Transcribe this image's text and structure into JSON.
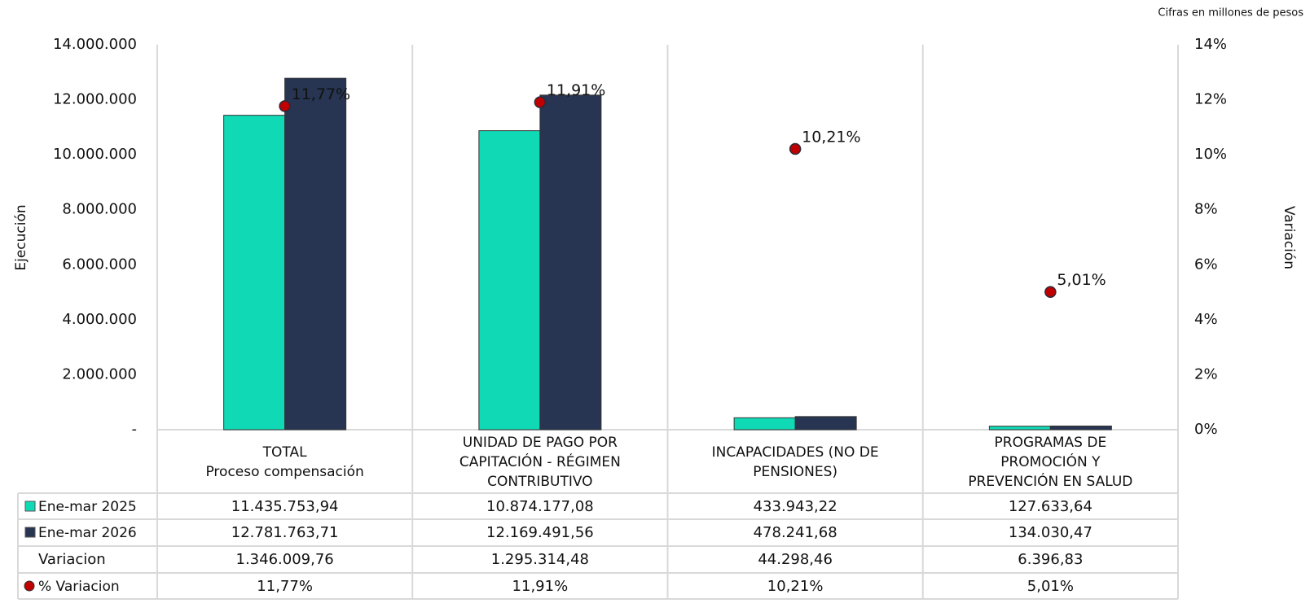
{
  "chart_data": {
    "type": "bar",
    "note": "Cifras en millones de pesos",
    "ylabel": "Ejecución",
    "y2label": "Variación",
    "categories": [
      [
        "TOTAL",
        "Proceso compensación"
      ],
      [
        "UNIDAD DE PAGO POR",
        "CAPITACIÓN - RÉGIMEN",
        "CONTRIBUTIVO"
      ],
      [
        "INCAPACIDADES (NO DE",
        "PENSIONES)"
      ],
      [
        "PROGRAMAS DE",
        "PROMOCIÓN Y",
        "PREVENCIÓN EN SALUD"
      ]
    ],
    "series": [
      {
        "name": "Ene-mar 2025",
        "color": "#10d9b6",
        "values": [
          11435753.94,
          10874177.08,
          433943.22,
          127633.64
        ],
        "value_labels": [
          "11.435.753,94",
          "10.874.177,08",
          "433.943,22",
          "127.633,64"
        ]
      },
      {
        "name": "Ene-mar 2026",
        "color": "#273552",
        "values": [
          12781763.71,
          12169491.56,
          478241.68,
          134030.47
        ],
        "value_labels": [
          "12.781.763,71",
          "12.169.491,56",
          "478.241,68",
          "134.030,47"
        ]
      },
      {
        "name": "% Variacion",
        "type": "scatter",
        "axis": "y2",
        "color": "#c00000",
        "values": [
          11.77,
          11.91,
          10.21,
          5.01
        ],
        "value_labels": [
          "11,77%",
          "11,91%",
          "10,21%",
          "5,01%"
        ]
      }
    ],
    "variacion": {
      "name": "Variacion",
      "values": [
        1346009.76,
        1295314.48,
        44298.46,
        6396.83
      ],
      "value_labels": [
        "1.346.009,76",
        "1.295.314,48",
        "44.298,46",
        "6.396,83"
      ]
    },
    "ylim": [
      0,
      14000000
    ],
    "yticks": [
      {
        "value": 0,
        "label": "-"
      },
      {
        "value": 2000000,
        "label": "2.000.000"
      },
      {
        "value": 4000000,
        "label": "4.000.000"
      },
      {
        "value": 6000000,
        "label": "6.000.000"
      },
      {
        "value": 8000000,
        "label": "8.000.000"
      },
      {
        "value": 10000000,
        "label": "10.000.000"
      },
      {
        "value": 12000000,
        "label": "12.000.000"
      },
      {
        "value": 14000000,
        "label": "14.000.000"
      }
    ],
    "y2lim": [
      0,
      14
    ],
    "y2ticks": [
      {
        "value": 0,
        "label": "0%"
      },
      {
        "value": 2,
        "label": "2%"
      },
      {
        "value": 4,
        "label": "4%"
      },
      {
        "value": 6,
        "label": "6%"
      },
      {
        "value": 8,
        "label": "8%"
      },
      {
        "value": 10,
        "label": "10%"
      },
      {
        "value": 12,
        "label": "12%"
      },
      {
        "value": 14,
        "label": "14%"
      }
    ]
  }
}
